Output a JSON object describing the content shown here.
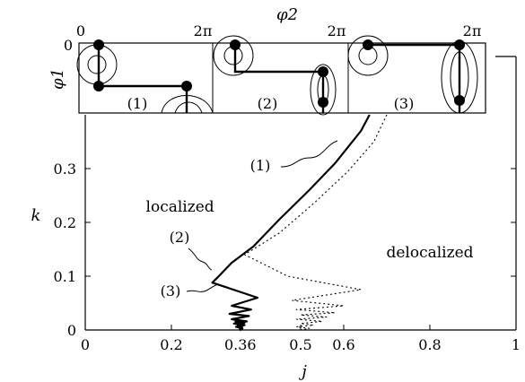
{
  "chart_data": {
    "type": "line",
    "xlabel": "j",
    "ylabel": "k",
    "xlim": [
      0,
      1
    ],
    "ylim": [
      0,
      0.4
    ],
    "x_ticks": [
      {
        "value": 0,
        "label": "0"
      },
      {
        "value": 0.2,
        "label": "0.2"
      },
      {
        "value": 0.36,
        "label": "0.36"
      },
      {
        "value": 0.5,
        "label": "0.5"
      },
      {
        "value": 0.6,
        "label": "0.6"
      },
      {
        "value": 0.8,
        "label": "0.8"
      },
      {
        "value": 1,
        "label": "1"
      }
    ],
    "y_ticks": [
      {
        "value": 0,
        "label": "0"
      },
      {
        "value": 0.1,
        "label": "0.1"
      },
      {
        "value": 0.2,
        "label": "0.2"
      },
      {
        "value": 0.3,
        "label": "0.3"
      }
    ],
    "series": [
      {
        "style": "solid",
        "points": [
          [
            0.66,
            0.4
          ],
          [
            0.64,
            0.37
          ],
          [
            0.58,
            0.31
          ],
          [
            0.52,
            0.26
          ],
          [
            0.45,
            0.205
          ],
          [
            0.39,
            0.155
          ],
          [
            0.34,
            0.125
          ],
          [
            0.31,
            0.1
          ],
          [
            0.295,
            0.088
          ],
          [
            0.4,
            0.06
          ],
          [
            0.34,
            0.045
          ],
          [
            0.385,
            0.038
          ],
          [
            0.335,
            0.03
          ],
          [
            0.38,
            0.026
          ],
          [
            0.34,
            0.02
          ],
          [
            0.375,
            0.016
          ],
          [
            0.345,
            0.012
          ],
          [
            0.37,
            0.009
          ],
          [
            0.35,
            0.006
          ],
          [
            0.365,
            0.003
          ],
          [
            0.36,
            0
          ]
        ]
      },
      {
        "style": "dotted",
        "points": [
          [
            0.7,
            0.4
          ],
          [
            0.67,
            0.35
          ],
          [
            0.61,
            0.295
          ],
          [
            0.53,
            0.235
          ],
          [
            0.45,
            0.18
          ],
          [
            0.37,
            0.14
          ],
          [
            0.47,
            0.1
          ],
          [
            0.64,
            0.075
          ],
          [
            0.48,
            0.055
          ],
          [
            0.6,
            0.045
          ],
          [
            0.49,
            0.038
          ],
          [
            0.58,
            0.032
          ],
          [
            0.5,
            0.028
          ],
          [
            0.56,
            0.024
          ],
          [
            0.49,
            0.02
          ],
          [
            0.55,
            0.016
          ],
          [
            0.5,
            0.012
          ],
          [
            0.53,
            0.009
          ],
          [
            0.49,
            0.006
          ],
          [
            0.52,
            0.003
          ],
          [
            0.5,
            0
          ]
        ]
      }
    ],
    "endpoint_marker": {
      "x": 0.36,
      "y": 0.004,
      "symbol": "triangle-down"
    },
    "annotations": [
      {
        "text": "(1)",
        "x": 0.54,
        "y": 0.34
      },
      {
        "text": "(2)",
        "x": 0.31,
        "y": 0.11
      },
      {
        "text": "(3)",
        "x": 0.335,
        "y": 0.065
      }
    ],
    "region_labels": [
      {
        "text": "localized",
        "x": 0.22,
        "y": 0.22
      },
      {
        "text": "delocalized",
        "x": 0.8,
        "y": 0.135
      }
    ],
    "inset": {
      "xlabel": "φ2",
      "ylabel": "φ1",
      "tick_zero": "0",
      "tick_two_pi": "2π",
      "phase_labels": [
        "(1)",
        "(2)",
        "(3)"
      ]
    }
  }
}
